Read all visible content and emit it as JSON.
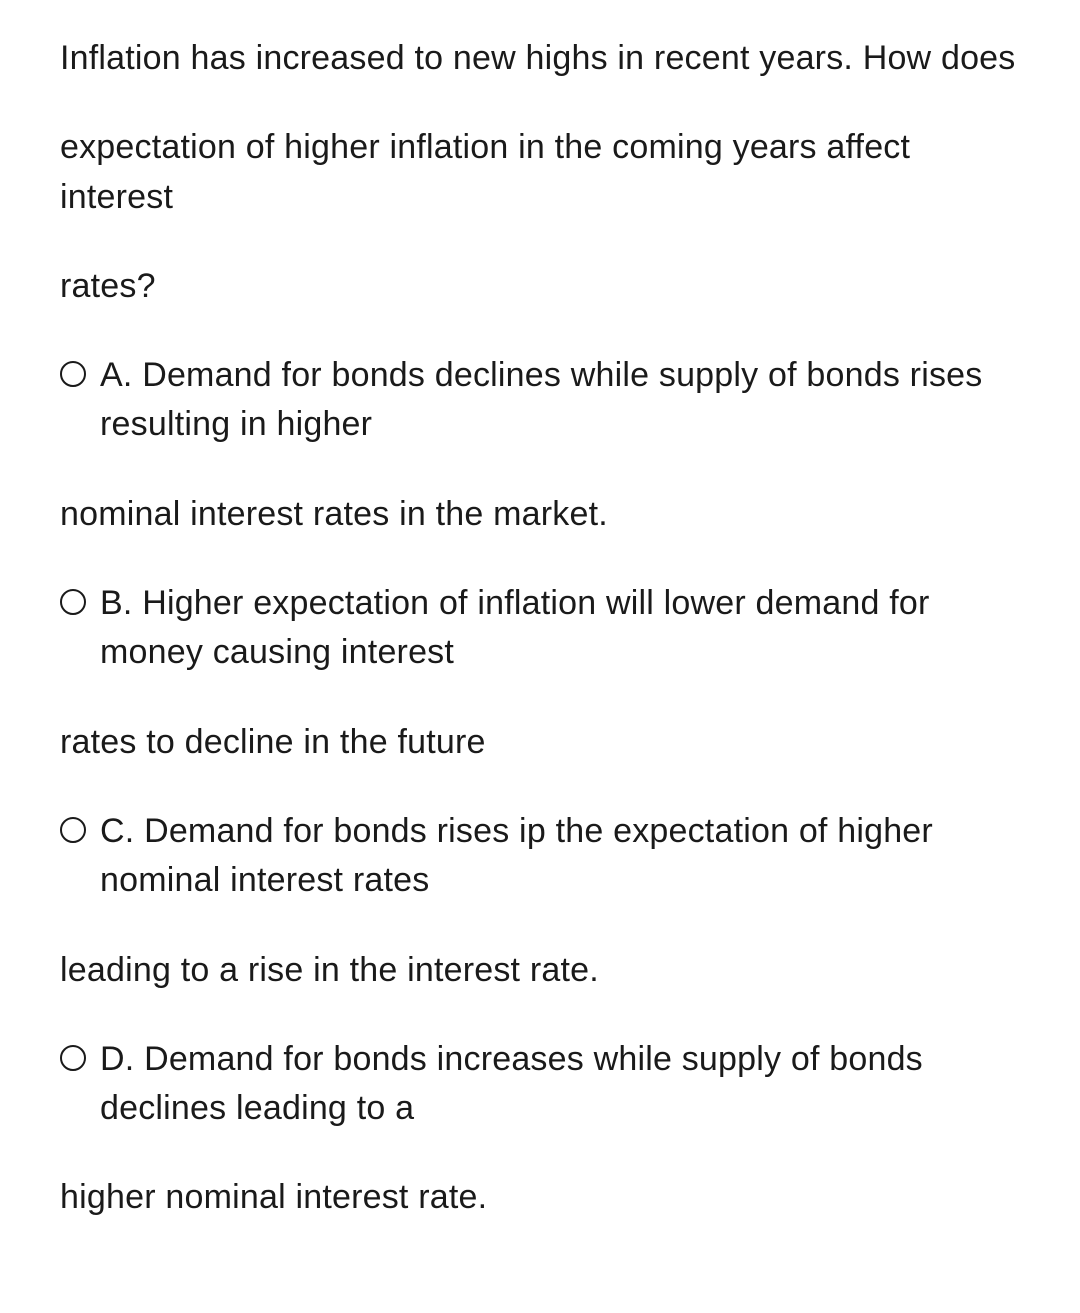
{
  "text_color": "#1a1a1a",
  "background_color": "#ffffff",
  "question": {
    "line1": "Inflation has increased to new highs in recent years. How does",
    "line2": "expectation of higher inflation in the coming years affect interest",
    "line3": "rates?"
  },
  "options": {
    "A": {
      "label": "A.",
      "line1": "Demand for bonds declines while supply of bonds rises resulting in higher",
      "line2": "nominal interest rates in the market."
    },
    "B": {
      "label": "B.",
      "line1": "Higher expectation of inflation will lower demand for money causing interest",
      "line2": "rates to decline in the future"
    },
    "C": {
      "label": "C.",
      "line1": "Demand for bonds rises ip the expectation of higher nominal interest rates",
      "line2": "leading to a rise in the interest rate."
    },
    "D": {
      "label": "D.",
      "line1": "Demand for bonds increases while supply of bonds declines leading to a",
      "line2": "higher nominal interest rate."
    }
  }
}
